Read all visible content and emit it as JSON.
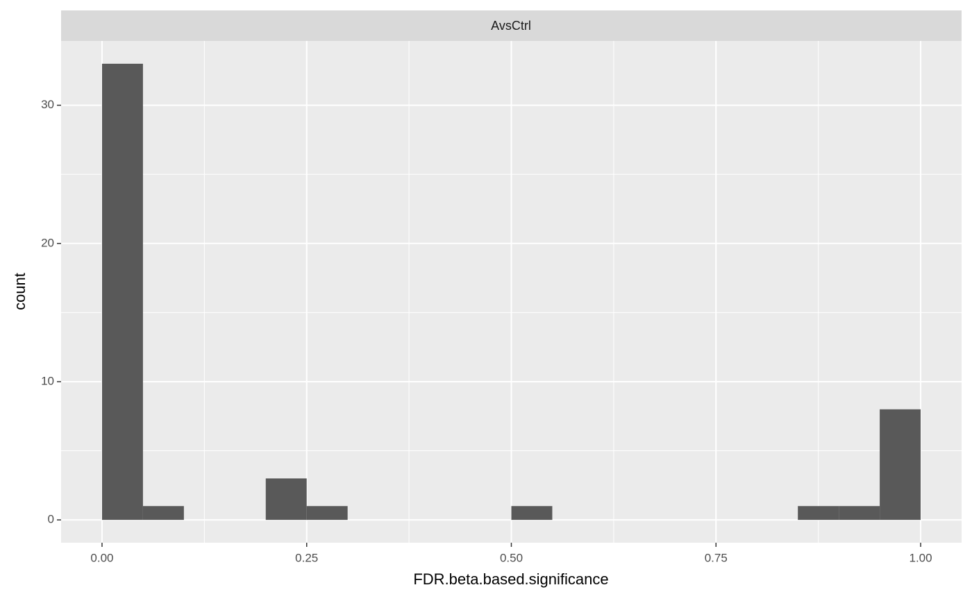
{
  "chart_data": {
    "type": "histogram",
    "strip": "AvsCtrl",
    "x_label": "FDR.beta.based.significance",
    "y_label": "count",
    "bins": [
      0,
      0.05,
      0.1,
      0.15,
      0.2,
      0.25,
      0.3,
      0.35,
      0.4,
      0.45,
      0.5,
      0.55,
      0.6,
      0.65,
      0.7,
      0.75,
      0.8,
      0.85,
      0.9,
      0.95,
      1.0
    ],
    "values": [
      33,
      1,
      0,
      0,
      3,
      1,
      0,
      0,
      0,
      0,
      1,
      0,
      0,
      0,
      0,
      0,
      0,
      1,
      1,
      8
    ],
    "color": "#595959",
    "xlim": [
      -0.05,
      1.05
    ],
    "ylim": [
      -1.65,
      34.65
    ],
    "xticks": [
      {
        "value": 0,
        "label": "0.00"
      },
      {
        "value": 0.25,
        "label": "0.25"
      },
      {
        "value": 0.5,
        "label": "0.50"
      },
      {
        "value": 0.75,
        "label": "0.75"
      },
      {
        "value": 1,
        "label": "1.00"
      }
    ],
    "yticks": [
      0,
      10,
      20,
      30
    ],
    "x_minor_grid": [
      0.125,
      0.375,
      0.625,
      0.875
    ],
    "y_minor_grid": [
      5,
      15,
      25
    ],
    "grid": true
  }
}
